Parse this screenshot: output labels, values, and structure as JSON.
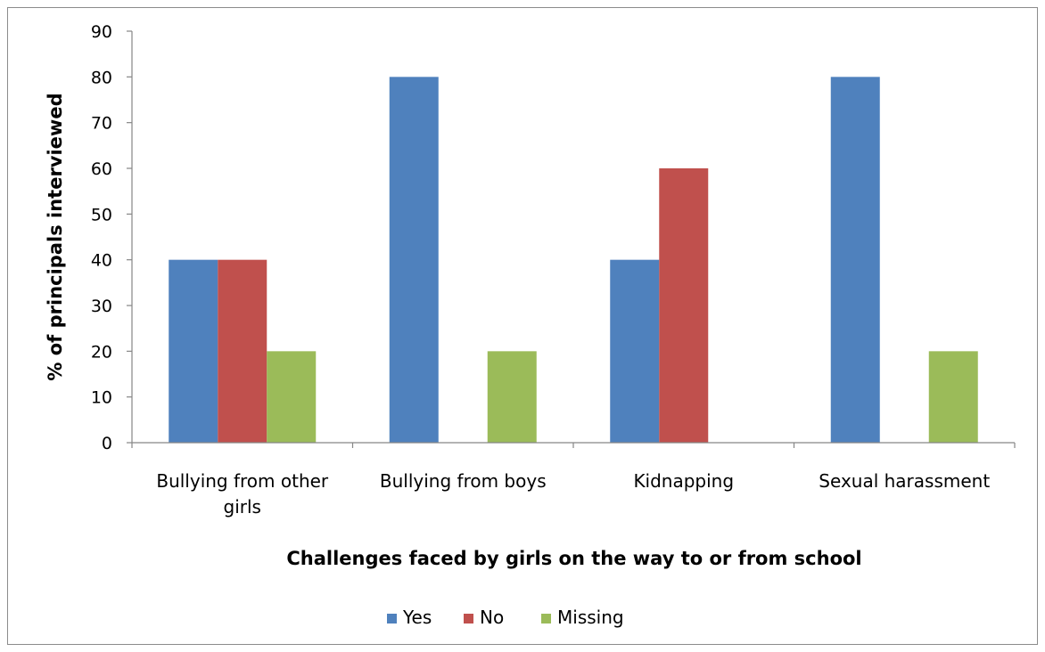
{
  "chart_data": {
    "type": "bar",
    "categories": [
      [
        "Bullying from other",
        "girls"
      ],
      [
        "Bullying from boys"
      ],
      [
        "Kidnapping"
      ],
      [
        "Sexual harassment"
      ]
    ],
    "series": [
      {
        "name": "Yes",
        "color": "#4f81bd",
        "values": [
          40,
          80,
          40,
          80
        ]
      },
      {
        "name": "No",
        "color": "#c0504d",
        "values": [
          40,
          0,
          60,
          0
        ]
      },
      {
        "name": "Missing",
        "color": "#9bbb59",
        "values": [
          20,
          20,
          0,
          20
        ]
      }
    ],
    "xlabel": "Challenges faced by girls on the way to or from school",
    "ylabel": "% of principals interviewed",
    "ylim": [
      0,
      90
    ],
    "yticks": [
      0,
      10,
      20,
      30,
      40,
      50,
      60,
      70,
      80,
      90
    ],
    "grid": false,
    "legend_position": "bottom"
  }
}
